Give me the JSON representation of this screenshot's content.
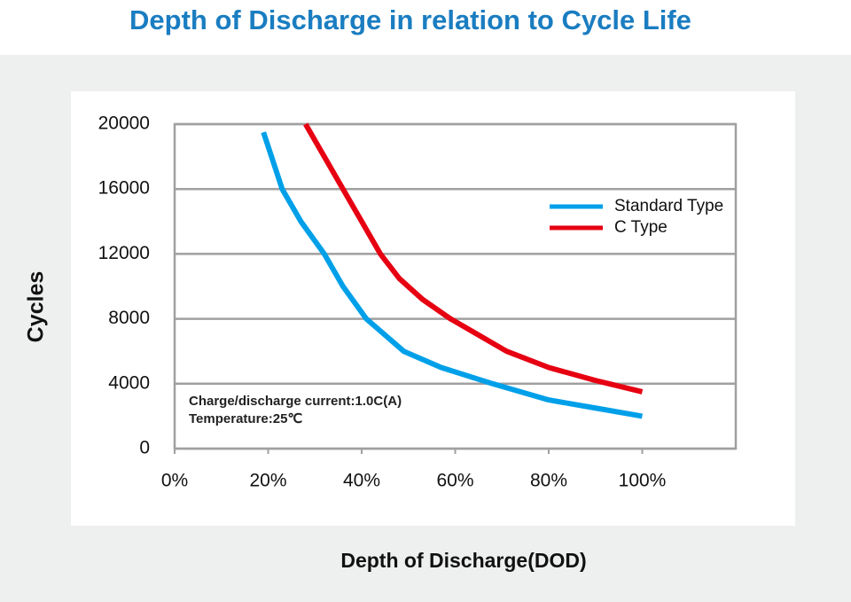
{
  "chart_data": {
    "type": "line",
    "title": "Depth of Discharge in relation to Cycle Life",
    "x_label": "Depth of Discharge(DOD)",
    "y_label": "Cycles",
    "annotations": [
      "Charge/discharge current:1.0C(A)",
      "Temperature:25℃"
    ],
    "xlim": [
      0,
      120
    ],
    "xticks": [
      {
        "value": 0,
        "label": "0%"
      },
      {
        "value": 20,
        "label": "20%"
      },
      {
        "value": 40,
        "label": "40%"
      },
      {
        "value": 60,
        "label": "60%"
      },
      {
        "value": 80,
        "label": "80%"
      },
      {
        "value": 100,
        "label": "100%"
      }
    ],
    "ylim": [
      0,
      20000
    ],
    "yticks": [
      0,
      4000,
      8000,
      12000,
      16000,
      20000
    ],
    "grid": true,
    "legend": "upper right",
    "series": [
      {
        "name": "Standard Type",
        "color": "#00a0e9",
        "x": [
          19,
          23,
          27,
          32,
          36,
          41,
          49,
          57,
          68,
          80,
          90,
          100
        ],
        "values": [
          19500,
          16000,
          14000,
          12000,
          10000,
          8000,
          6000,
          5000,
          4000,
          3000,
          2500,
          2000
        ]
      },
      {
        "name": "C Type",
        "color": "#e60012",
        "x": [
          28,
          32,
          36,
          40,
          44,
          48,
          53,
          59,
          65,
          71,
          80,
          90,
          100
        ],
        "values": [
          20000,
          18000,
          16000,
          14000,
          12000,
          10500,
          9200,
          8000,
          7000,
          6000,
          5000,
          4200,
          3500
        ]
      }
    ]
  }
}
